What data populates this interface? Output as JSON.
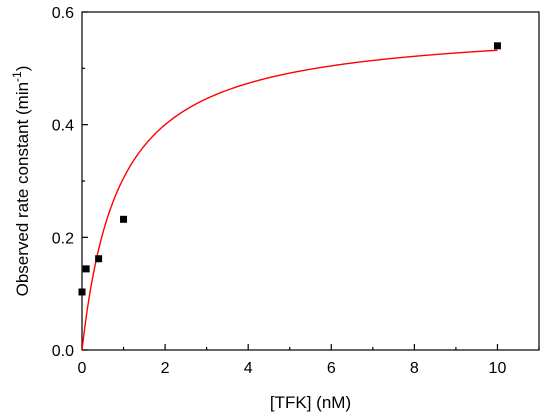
{
  "chart_data": {
    "type": "scatter",
    "xlabel": "[TFK] (nM)",
    "ylabel": {
      "text": "Observed rate constant (min",
      "superscript": "-1",
      "suffix": ")"
    },
    "xlim": [
      0,
      11
    ],
    "ylim": [
      0,
      0.6
    ],
    "x_ticks": [
      0,
      2,
      4,
      6,
      8,
      10
    ],
    "y_ticks": [
      0.0,
      0.2,
      0.4,
      0.6
    ],
    "x_tick_labels": [
      "0",
      "2",
      "4",
      "6",
      "8",
      "10"
    ],
    "y_tick_labels": [
      "0.0",
      "0.2",
      "0.4",
      "0.6"
    ],
    "grid": false,
    "series": [
      {
        "type": "scatter",
        "marker": "square",
        "color": "#000000",
        "x": [
          0,
          0.1,
          0.4,
          1,
          10
        ],
        "y": [
          0.103,
          0.144,
          0.162,
          0.232,
          0.54
        ]
      }
    ],
    "fit": {
      "type": "line",
      "model": "hyperbolic",
      "color": "#ff0000",
      "vmax": 0.58,
      "k": 0.9
    }
  }
}
